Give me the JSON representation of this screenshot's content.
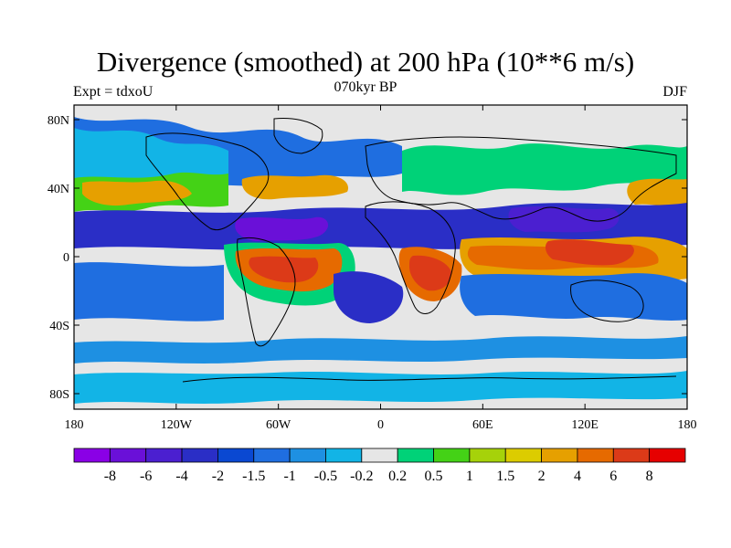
{
  "title": "Divergence (smoothed) at 200 hPa (10**6 m/s)",
  "experiment": "Expt = tdxoU",
  "period": "070kyr BP",
  "season": "DJF",
  "map": {
    "lat_ticks": [
      "80N",
      "40N",
      "0",
      "40S",
      "80S"
    ],
    "lon_ticks": [
      "180",
      "120W",
      "60W",
      "0",
      "60E",
      "120E",
      "180"
    ],
    "background_color": "#e6e6e6",
    "contour_color": "#ffffff",
    "coastline_color": "#000000"
  },
  "colorbar": {
    "labels": [
      "-8",
      "-6",
      "-4",
      "-2",
      "-1.5",
      "-1",
      "-0.5",
      "-0.2",
      "0.2",
      "0.5",
      "1",
      "1.5",
      "2",
      "4",
      "6",
      "8"
    ],
    "colors": [
      "#8a00e6",
      "#6a10d8",
      "#4b1fd0",
      "#2a2ec6",
      "#0a48d2",
      "#1f6ee0",
      "#1e90e2",
      "#12b4e6",
      "#e6e6e6",
      "#00d278",
      "#44d216",
      "#a6d20a",
      "#dccc00",
      "#e6a000",
      "#e66a00",
      "#dc3a18",
      "#e60000"
    ]
  }
}
